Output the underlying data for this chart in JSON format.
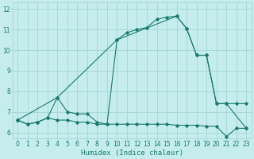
{
  "xlabel": "Humidex (Indice chaleur)",
  "bg_color": "#c6eded",
  "line_color": "#1a7a6e",
  "grid_color": "#a8d8d8",
  "xlim": [
    -0.5,
    23.5
  ],
  "ylim": [
    5.7,
    12.3
  ],
  "xticks": [
    0,
    1,
    2,
    3,
    4,
    5,
    6,
    7,
    8,
    9,
    10,
    11,
    12,
    13,
    14,
    15,
    16,
    17,
    18,
    19,
    20,
    21,
    22,
    23
  ],
  "yticks": [
    6,
    7,
    8,
    9,
    10,
    11,
    12
  ],
  "line1_x": [
    0,
    1,
    2,
    3,
    4,
    5,
    6,
    7,
    8,
    9,
    10,
    11,
    12,
    13,
    14,
    15,
    16,
    17,
    18,
    19,
    20,
    21,
    22,
    23
  ],
  "line1_y": [
    6.6,
    6.4,
    6.5,
    6.7,
    6.6,
    6.6,
    6.5,
    6.5,
    6.4,
    6.4,
    6.4,
    6.4,
    6.4,
    6.4,
    6.4,
    6.4,
    6.35,
    6.35,
    6.35,
    6.3,
    6.3,
    5.8,
    6.2,
    6.2
  ],
  "line2_x": [
    0,
    1,
    2,
    3,
    4,
    5,
    6,
    7,
    8,
    9,
    10,
    11,
    12,
    13,
    14,
    15,
    16,
    17,
    18,
    19,
    20,
    21,
    22,
    23
  ],
  "line2_y": [
    6.6,
    6.4,
    6.5,
    6.7,
    7.7,
    7.0,
    6.9,
    6.9,
    6.5,
    6.4,
    10.5,
    10.85,
    11.0,
    11.1,
    11.5,
    11.6,
    11.65,
    11.05,
    9.75,
    9.75,
    7.4,
    7.4,
    7.4,
    7.4
  ],
  "line3_x": [
    0,
    4,
    10,
    16,
    17,
    18,
    19,
    20,
    21,
    23
  ],
  "line3_y": [
    6.6,
    7.7,
    10.5,
    11.65,
    11.05,
    9.75,
    9.75,
    7.4,
    7.4,
    6.2
  ]
}
